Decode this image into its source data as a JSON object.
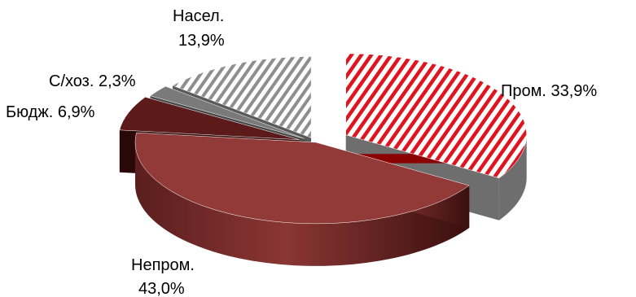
{
  "chart_data": {
    "type": "pie",
    "style": "3d-exploded",
    "title": "",
    "slices": [
      {
        "name": "Пром.",
        "value": 33.9,
        "label": "Пром. 33,9%",
        "color": "#e0141e",
        "pattern": "hatched"
      },
      {
        "name": "Непром.",
        "value": 43.0,
        "label_lines": [
          "Непром.",
          "43,0%"
        ],
        "color": "#913a37"
      },
      {
        "name": "Бюдж.",
        "value": 6.9,
        "label": "Бюдж. 6,9%",
        "color": "#5a1818"
      },
      {
        "name": "С/хоз.",
        "value": 2.3,
        "label": "С/хоз. 2,3%",
        "color": "#7a7a7a"
      },
      {
        "name": "Насел.",
        "value": 13.9,
        "label_lines": [
          "Насел.",
          "13,9%"
        ],
        "color": "#9a9a9a",
        "pattern": "hatched"
      }
    ]
  }
}
